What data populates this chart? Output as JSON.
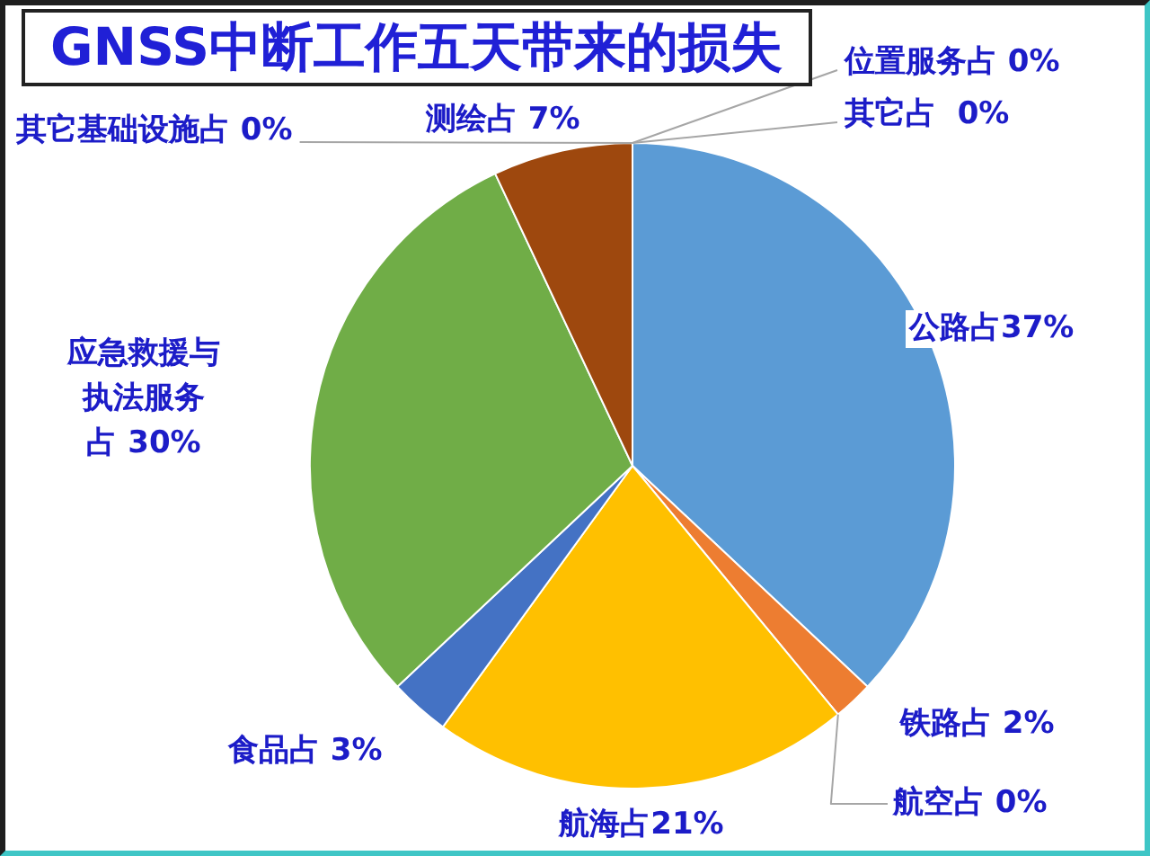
{
  "chart_data": {
    "type": "pie",
    "title": "GNSS中断工作五天带来的损失",
    "categories": [
      "公路",
      "铁路",
      "航空",
      "航海",
      "食品",
      "应急救援与执法服务",
      "测绘",
      "其它基础设施",
      "位置服务",
      "其它"
    ],
    "values": [
      37,
      2,
      0,
      21,
      3,
      30,
      7,
      0,
      0,
      0
    ],
    "colors": [
      "#5b9bd5",
      "#ed7d31",
      "#a5a5a5",
      "#ffc000",
      "#4472c4",
      "#70ad47",
      "#9e480e",
      "#636363",
      "#997300",
      "#264478"
    ],
    "value_labels": [
      "占37%",
      "占 2%",
      "占 0%",
      "占21%",
      "占 3%",
      "占 30%",
      "占 7%",
      "占 0%",
      "占 0%",
      "占  0%"
    ]
  }
}
